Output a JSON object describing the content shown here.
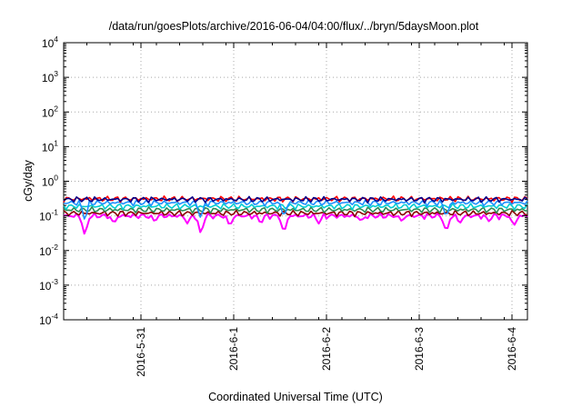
{
  "chart_data": {
    "type": "line",
    "title": "/data/run/goesPlots/archive/2016-06-04/04:00/flux/../bryn/5daysMoon.plot",
    "xlabel": "Coordinated Universal Time (UTC)",
    "ylabel": "cGy/day",
    "y_scale": "log",
    "ylim": [
      0.0001,
      10000
    ],
    "y_ticks": [
      {
        "base": "10",
        "exp": "4",
        "value": 10000
      },
      {
        "base": "10",
        "exp": "3",
        "value": 1000
      },
      {
        "base": "10",
        "exp": "2",
        "value": 100
      },
      {
        "base": "10",
        "exp": "1",
        "value": 10
      },
      {
        "base": "10",
        "exp": "0",
        "value": 1
      },
      {
        "base": "10",
        "exp": "-1",
        "value": 0.1
      },
      {
        "base": "10",
        "exp": "-2",
        "value": 0.01
      },
      {
        "base": "10",
        "exp": "-3",
        "value": 0.001
      },
      {
        "base": "10",
        "exp": "-4",
        "value": 0.0001
      }
    ],
    "xlim": [
      "2016-05-30 04:00",
      "2016-06-04 04:00"
    ],
    "x_ticks": [
      {
        "label": "2016-5-31",
        "date": "2016-05-31 00:00"
      },
      {
        "label": "2016-6-1",
        "date": "2016-06-01 00:00"
      },
      {
        "label": "2016-6-2",
        "date": "2016-06-02 00:00"
      },
      {
        "label": "2016-6-3",
        "date": "2016-06-03 00:00"
      },
      {
        "label": "2016-6-4",
        "date": "2016-06-04 00:00"
      }
    ],
    "grid": true,
    "series": [
      {
        "color": "#ff00ff",
        "level": 0.1,
        "dips": [
          {
            "date": "2016-05-30 09:30",
            "value": 0.025
          },
          {
            "date": "2016-05-30 17:00",
            "value": 0.06
          },
          {
            "date": "2016-05-31 03:30",
            "value": 0.07
          },
          {
            "date": "2016-05-31 12:00",
            "value": 0.06
          },
          {
            "date": "2016-05-31 15:30",
            "value": 0.028
          },
          {
            "date": "2016-05-31 23:00",
            "value": 0.05
          },
          {
            "date": "2016-06-01 07:00",
            "value": 0.06
          },
          {
            "date": "2016-06-01 13:00",
            "value": 0.03
          },
          {
            "date": "2016-06-01 22:00",
            "value": 0.06
          },
          {
            "date": "2016-06-02 09:00",
            "value": 0.07
          },
          {
            "date": "2016-06-02 19:30",
            "value": 0.07
          },
          {
            "date": "2016-06-03 07:00",
            "value": 0.032
          },
          {
            "date": "2016-06-03 10:30",
            "value": 0.06
          },
          {
            "date": "2016-06-03 18:00",
            "value": 0.07
          },
          {
            "date": "2016-06-04 00:30",
            "value": 0.05
          }
        ]
      },
      {
        "color": "#8b0000",
        "level": 0.12,
        "dips": []
      },
      {
        "color": "#2e8b57",
        "level": 0.15,
        "dips": []
      },
      {
        "color": "#00ced1",
        "level": 0.19,
        "dips": []
      },
      {
        "color": "#1e90ff",
        "level": 0.24,
        "dips": [
          {
            "date": "2016-05-30 09:30",
            "value": 0.07
          },
          {
            "date": "2016-05-31 15:30",
            "value": 0.08
          },
          {
            "date": "2016-06-01 13:00",
            "value": 0.09
          },
          {
            "date": "2016-06-03 07:00",
            "value": 0.09
          }
        ]
      },
      {
        "color": "#ff0000",
        "level": 0.31,
        "dips": []
      },
      {
        "color": "#00008b",
        "level": 0.3,
        "dips": []
      }
    ]
  }
}
